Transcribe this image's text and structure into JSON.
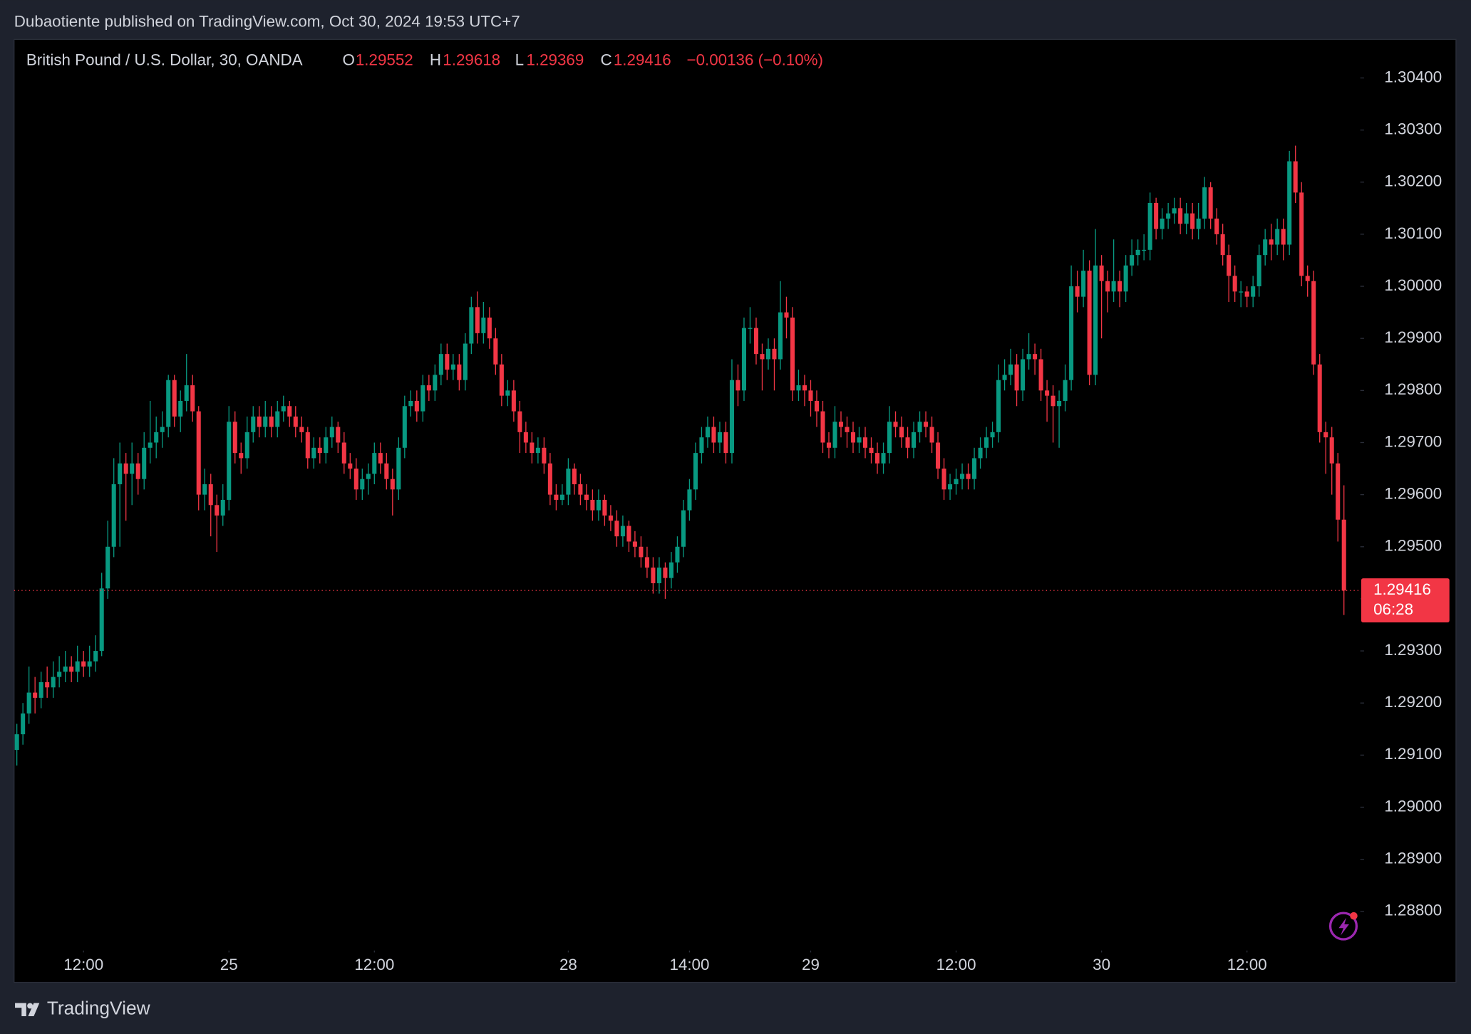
{
  "header": {
    "published": "Dubaotiente published on TradingView.com, Oct 30, 2024 19:53 UTC+7"
  },
  "footer": {
    "brand": "TradingView"
  },
  "chart_data": {
    "type": "candlestick",
    "symbol": "British Pound / U.S. Dollar, 30, OANDA",
    "open_label": "O",
    "high_label": "H",
    "low_label": "L",
    "close_label": "C",
    "change": "−0.00136 (−0.10%)",
    "countdown": "06:28",
    "up_color": "#089981",
    "down_color": "#f23645",
    "xlim": [
      -0.46,
      221.7
    ],
    "ylim": [
      1.28732,
      1.30474
    ],
    "xticks": [
      {
        "value": 11,
        "label": "12:00"
      },
      {
        "value": 35,
        "label": "25"
      },
      {
        "value": 59,
        "label": "12:00"
      },
      {
        "value": 91,
        "label": "28"
      },
      {
        "value": 111,
        "label": "14:00"
      },
      {
        "value": 131,
        "label": "29"
      },
      {
        "value": 155,
        "label": "12:00"
      },
      {
        "value": 179,
        "label": "30"
      },
      {
        "value": 203,
        "label": "12:00"
      }
    ],
    "yticks": [
      {
        "value": 1.288,
        "label": "1.28800"
      },
      {
        "value": 1.289,
        "label": "1.28900"
      },
      {
        "value": 1.29,
        "label": "1.29000"
      },
      {
        "value": 1.291,
        "label": "1.29100"
      },
      {
        "value": 1.292,
        "label": "1.29200"
      },
      {
        "value": 1.293,
        "label": "1.29300"
      },
      {
        "value": 1.294,
        "label": "1.29400"
      },
      {
        "value": 1.295,
        "label": "1.29500"
      },
      {
        "value": 1.296,
        "label": "1.29600"
      },
      {
        "value": 1.297,
        "label": "1.29700"
      },
      {
        "value": 1.298,
        "label": "1.29800"
      },
      {
        "value": 1.299,
        "label": "1.29900"
      },
      {
        "value": 1.3,
        "label": "1.30000"
      },
      {
        "value": 1.301,
        "label": "1.30100"
      },
      {
        "value": 1.302,
        "label": "1.30200"
      },
      {
        "value": 1.303,
        "label": "1.30300"
      },
      {
        "value": 1.304,
        "label": "1.30400"
      }
    ],
    "candles": [
      [
        1.2911,
        1.2916,
        1.2908,
        1.2914
      ],
      [
        1.2914,
        1.292,
        1.2912,
        1.2918
      ],
      [
        1.2918,
        1.2927,
        1.2916,
        1.2922
      ],
      [
        1.2922,
        1.2925,
        1.2918,
        1.2921
      ],
      [
        1.2921,
        1.2926,
        1.2919,
        1.2924
      ],
      [
        1.2924,
        1.2927,
        1.2921,
        1.2923
      ],
      [
        1.2923,
        1.2928,
        1.2921,
        1.2925
      ],
      [
        1.2925,
        1.2929,
        1.2923,
        1.2926
      ],
      [
        1.2926,
        1.293,
        1.2924,
        1.2927
      ],
      [
        1.2927,
        1.2929,
        1.2924,
        1.2926
      ],
      [
        1.2926,
        1.2931,
        1.2924,
        1.2928
      ],
      [
        1.2928,
        1.293,
        1.2925,
        1.2927
      ],
      [
        1.2927,
        1.2931,
        1.2925,
        1.2928
      ],
      [
        1.2928,
        1.2933,
        1.2926,
        1.293
      ],
      [
        1.293,
        1.2945,
        1.2929,
        1.2942
      ],
      [
        1.2942,
        1.2955,
        1.294,
        1.295
      ],
      [
        1.295,
        1.2967,
        1.2948,
        1.2962
      ],
      [
        1.2962,
        1.297,
        1.295,
        1.2966
      ],
      [
        1.2966,
        1.2968,
        1.2955,
        1.2964
      ],
      [
        1.2964,
        1.297,
        1.2958,
        1.2966
      ],
      [
        1.2966,
        1.2968,
        1.296,
        1.2963
      ],
      [
        1.2963,
        1.2972,
        1.2961,
        1.2969
      ],
      [
        1.2969,
        1.2978,
        1.2966,
        1.297
      ],
      [
        1.297,
        1.2975,
        1.2967,
        1.2972
      ],
      [
        1.2972,
        1.2976,
        1.2969,
        1.2973
      ],
      [
        1.2973,
        1.2983,
        1.2971,
        1.2982
      ],
      [
        1.2982,
        1.2983,
        1.2973,
        1.2975
      ],
      [
        1.2975,
        1.298,
        1.2972,
        1.2978
      ],
      [
        1.2978,
        1.2987,
        1.2976,
        1.2981
      ],
      [
        1.2981,
        1.2983,
        1.2974,
        1.2976
      ],
      [
        1.2976,
        1.2977,
        1.2957,
        1.296
      ],
      [
        1.296,
        1.2965,
        1.2957,
        1.2962
      ],
      [
        1.2962,
        1.2964,
        1.2952,
        1.2958
      ],
      [
        1.2958,
        1.296,
        1.2949,
        1.2956
      ],
      [
        1.2956,
        1.2962,
        1.2954,
        1.2959
      ],
      [
        1.2959,
        1.2977,
        1.2957,
        1.2974
      ],
      [
        1.2974,
        1.2976,
        1.2966,
        1.2968
      ],
      [
        1.2968,
        1.297,
        1.2964,
        1.2967
      ],
      [
        1.2967,
        1.2975,
        1.2965,
        1.2972
      ],
      [
        1.2972,
        1.2977,
        1.297,
        1.2975
      ],
      [
        1.2975,
        1.2977,
        1.2971,
        1.2973
      ],
      [
        1.2973,
        1.2978,
        1.2971,
        1.2975
      ],
      [
        1.2975,
        1.2977,
        1.2971,
        1.2973
      ],
      [
        1.2973,
        1.2978,
        1.2971,
        1.2976
      ],
      [
        1.2976,
        1.2979,
        1.2974,
        1.2977
      ],
      [
        1.2977,
        1.2978,
        1.2973,
        1.2975
      ],
      [
        1.2975,
        1.2977,
        1.2971,
        1.2973
      ],
      [
        1.2973,
        1.2975,
        1.297,
        1.2972
      ],
      [
        1.2972,
        1.2973,
        1.2965,
        1.2967
      ],
      [
        1.2967,
        1.2971,
        1.2965,
        1.2969
      ],
      [
        1.2969,
        1.2971,
        1.2966,
        1.2968
      ],
      [
        1.2968,
        1.2973,
        1.2966,
        1.2971
      ],
      [
        1.2971,
        1.2975,
        1.2969,
        1.2973
      ],
      [
        1.2973,
        1.2974,
        1.2968,
        1.297
      ],
      [
        1.297,
        1.2972,
        1.2964,
        1.2966
      ],
      [
        1.2966,
        1.2968,
        1.2963,
        1.2965
      ],
      [
        1.2965,
        1.2967,
        1.2959,
        1.2961
      ],
      [
        1.2961,
        1.2965,
        1.2959,
        1.2963
      ],
      [
        1.2963,
        1.2966,
        1.296,
        1.2964
      ],
      [
        1.2964,
        1.297,
        1.2962,
        1.2968
      ],
      [
        1.2968,
        1.297,
        1.2964,
        1.2966
      ],
      [
        1.2966,
        1.2968,
        1.2961,
        1.2963
      ],
      [
        1.2963,
        1.2965,
        1.2956,
        1.2961
      ],
      [
        1.2961,
        1.2971,
        1.2959,
        1.2969
      ],
      [
        1.2969,
        1.2979,
        1.2967,
        1.2977
      ],
      [
        1.2977,
        1.298,
        1.2975,
        1.2978
      ],
      [
        1.2978,
        1.298,
        1.2974,
        1.2976
      ],
      [
        1.2976,
        1.2983,
        1.2974,
        1.2981
      ],
      [
        1.2981,
        1.2983,
        1.2978,
        1.298
      ],
      [
        1.298,
        1.2985,
        1.2978,
        1.2983
      ],
      [
        1.2983,
        1.2989,
        1.2981,
        1.2987
      ],
      [
        1.2987,
        1.2989,
        1.2982,
        1.2984
      ],
      [
        1.2984,
        1.2987,
        1.2982,
        1.2985
      ],
      [
        1.2985,
        1.2987,
        1.298,
        1.2982
      ],
      [
        1.2982,
        1.2991,
        1.298,
        1.2989
      ],
      [
        1.2989,
        1.2998,
        1.2987,
        1.2996
      ],
      [
        1.2996,
        1.2999,
        1.2989,
        1.2991
      ],
      [
        1.2991,
        1.2997,
        1.2989,
        1.2994
      ],
      [
        1.2994,
        1.2996,
        1.2988,
        1.299
      ],
      [
        1.299,
        1.2992,
        1.2983,
        1.2985
      ],
      [
        1.2985,
        1.2987,
        1.2977,
        1.2979
      ],
      [
        1.2979,
        1.2982,
        1.2977,
        1.298
      ],
      [
        1.298,
        1.2982,
        1.2974,
        1.2976
      ],
      [
        1.2976,
        1.2978,
        1.2968,
        1.2972
      ],
      [
        1.2972,
        1.2974,
        1.2968,
        1.297
      ],
      [
        1.297,
        1.2972,
        1.2966,
        1.2968
      ],
      [
        1.2968,
        1.2971,
        1.2966,
        1.2969
      ],
      [
        1.2969,
        1.2971,
        1.2964,
        1.2966
      ],
      [
        1.2966,
        1.2968,
        1.2958,
        1.296
      ],
      [
        1.296,
        1.2962,
        1.2957,
        1.2959
      ],
      [
        1.2959,
        1.2962,
        1.2958,
        1.296
      ],
      [
        1.296,
        1.2967,
        1.2958,
        1.2965
      ],
      [
        1.2965,
        1.2966,
        1.296,
        1.2962
      ],
      [
        1.2962,
        1.2964,
        1.2958,
        1.296
      ],
      [
        1.296,
        1.2962,
        1.2957,
        1.2959
      ],
      [
        1.2959,
        1.2961,
        1.2955,
        1.2957
      ],
      [
        1.2957,
        1.2961,
        1.2955,
        1.2959
      ],
      [
        1.2959,
        1.296,
        1.2954,
        1.2956
      ],
      [
        1.2956,
        1.2958,
        1.2953,
        1.2955
      ],
      [
        1.2955,
        1.2957,
        1.295,
        1.2952
      ],
      [
        1.2952,
        1.2956,
        1.295,
        1.2954
      ],
      [
        1.2954,
        1.2955,
        1.2949,
        1.2951
      ],
      [
        1.2951,
        1.2953,
        1.2948,
        1.295
      ],
      [
        1.295,
        1.2952,
        1.2946,
        1.2948
      ],
      [
        1.2948,
        1.295,
        1.2944,
        1.2946
      ],
      [
        1.2946,
        1.2948,
        1.2941,
        1.2943
      ],
      [
        1.2943,
        1.2948,
        1.2941,
        1.2946
      ],
      [
        1.2946,
        1.2947,
        1.294,
        1.2944
      ],
      [
        1.2944,
        1.2949,
        1.2942,
        1.2947
      ],
      [
        1.2947,
        1.2952,
        1.2945,
        1.295
      ],
      [
        1.295,
        1.2959,
        1.2948,
        1.2957
      ],
      [
        1.2957,
        1.2963,
        1.2955,
        1.2961
      ],
      [
        1.2961,
        1.297,
        1.2959,
        1.2968
      ],
      [
        1.2968,
        1.2973,
        1.2966,
        1.2971
      ],
      [
        1.2971,
        1.2975,
        1.2969,
        1.2973
      ],
      [
        1.2973,
        1.2975,
        1.2968,
        1.297
      ],
      [
        1.297,
        1.2974,
        1.2968,
        1.2972
      ],
      [
        1.2972,
        1.2974,
        1.2966,
        1.2968
      ],
      [
        1.2968,
        1.2986,
        1.2966,
        1.2982
      ],
      [
        1.2982,
        1.2985,
        1.2977,
        1.298
      ],
      [
        1.298,
        1.2994,
        1.2978,
        1.2992
      ],
      [
        1.2992,
        1.2996,
        1.2989,
        1.2992
      ],
      [
        1.2992,
        1.2994,
        1.2985,
        1.2987
      ],
      [
        1.2987,
        1.2989,
        1.298,
        1.2986
      ],
      [
        1.2986,
        1.299,
        1.2984,
        1.2988
      ],
      [
        1.2988,
        1.299,
        1.298,
        1.2986
      ],
      [
        1.2986,
        1.3001,
        1.2984,
        1.2995
      ],
      [
        1.2995,
        1.2998,
        1.299,
        1.2994
      ],
      [
        1.2994,
        1.2996,
        1.2978,
        1.298
      ],
      [
        1.298,
        1.2984,
        1.2978,
        1.2981
      ],
      [
        1.2981,
        1.2983,
        1.2977,
        1.298
      ],
      [
        1.298,
        1.2982,
        1.2975,
        1.2978
      ],
      [
        1.2978,
        1.298,
        1.2973,
        1.2976
      ],
      [
        1.2976,
        1.2978,
        1.2968,
        1.297
      ],
      [
        1.297,
        1.2972,
        1.2967,
        1.2969
      ],
      [
        1.2969,
        1.2977,
        1.2967,
        1.2974
      ],
      [
        1.2974,
        1.2976,
        1.2971,
        1.2973
      ],
      [
        1.2973,
        1.2975,
        1.2969,
        1.2972
      ],
      [
        1.2972,
        1.2974,
        1.2968,
        1.297
      ],
      [
        1.297,
        1.2973,
        1.2968,
        1.2971
      ],
      [
        1.2971,
        1.2973,
        1.2967,
        1.2969
      ],
      [
        1.2969,
        1.2971,
        1.2966,
        1.2968
      ],
      [
        1.2968,
        1.297,
        1.2964,
        1.2966
      ],
      [
        1.2966,
        1.297,
        1.2964,
        1.2968
      ],
      [
        1.2968,
        1.2977,
        1.2966,
        1.2974
      ],
      [
        1.2974,
        1.2976,
        1.2971,
        1.2973
      ],
      [
        1.2973,
        1.2975,
        1.2969,
        1.2971
      ],
      [
        1.2971,
        1.2973,
        1.2967,
        1.2969
      ],
      [
        1.2969,
        1.2974,
        1.2967,
        1.2972
      ],
      [
        1.2972,
        1.2976,
        1.297,
        1.2974
      ],
      [
        1.2974,
        1.2976,
        1.2971,
        1.2973
      ],
      [
        1.2973,
        1.2975,
        1.2968,
        1.297
      ],
      [
        1.297,
        1.2972,
        1.2963,
        1.2965
      ],
      [
        1.2965,
        1.2967,
        1.2959,
        1.2961
      ],
      [
        1.2961,
        1.2964,
        1.2959,
        1.2962
      ],
      [
        1.2962,
        1.2965,
        1.296,
        1.2963
      ],
      [
        1.2963,
        1.2966,
        1.2961,
        1.2964
      ],
      [
        1.2964,
        1.2966,
        1.2961,
        1.2963
      ],
      [
        1.2963,
        1.2969,
        1.2961,
        1.2967
      ],
      [
        1.2967,
        1.2971,
        1.2965,
        1.2969
      ],
      [
        1.2969,
        1.2973,
        1.2967,
        1.2971
      ],
      [
        1.2971,
        1.2974,
        1.2969,
        1.2972
      ],
      [
        1.2972,
        1.2985,
        1.297,
        1.2982
      ],
      [
        1.2982,
        1.2986,
        1.298,
        1.2983
      ],
      [
        1.2983,
        1.2988,
        1.2981,
        1.2985
      ],
      [
        1.2985,
        1.2987,
        1.2977,
        1.298
      ],
      [
        1.298,
        1.2988,
        1.2978,
        1.2986
      ],
      [
        1.2986,
        1.2991,
        1.2984,
        1.2987
      ],
      [
        1.2987,
        1.2989,
        1.2983,
        1.2986
      ],
      [
        1.2986,
        1.2988,
        1.2978,
        1.298
      ],
      [
        1.298,
        1.2982,
        1.2974,
        1.2979
      ],
      [
        1.2979,
        1.2981,
        1.297,
        1.2977
      ],
      [
        1.2977,
        1.298,
        1.2969,
        1.2978
      ],
      [
        1.2978,
        1.2985,
        1.2976,
        1.2982
      ],
      [
        1.2982,
        1.3004,
        1.298,
        1.3
      ],
      [
        1.3,
        1.3003,
        1.2995,
        1.2998
      ],
      [
        1.2998,
        1.3007,
        1.2996,
        1.3003
      ],
      [
        1.3003,
        1.3005,
        1.2981,
        1.2983
      ],
      [
        1.2983,
        1.3011,
        1.2981,
        1.3004
      ],
      [
        1.3004,
        1.3006,
        1.299,
        1.3001
      ],
      [
        1.3001,
        1.3003,
        1.2995,
        1.2999
      ],
      [
        1.2999,
        1.3009,
        1.2997,
        1.3001
      ],
      [
        1.3001,
        1.3003,
        1.2996,
        1.2999
      ],
      [
        1.2999,
        1.3006,
        1.2997,
        1.3004
      ],
      [
        1.3004,
        1.3009,
        1.3002,
        1.3006
      ],
      [
        1.3006,
        1.3009,
        1.3004,
        1.3007
      ],
      [
        1.3007,
        1.301,
        1.3005,
        1.3007
      ],
      [
        1.3007,
        1.3018,
        1.3005,
        1.3016
      ],
      [
        1.3016,
        1.3017,
        1.3009,
        1.3011
      ],
      [
        1.3011,
        1.3015,
        1.3009,
        1.3013
      ],
      [
        1.3013,
        1.3016,
        1.3011,
        1.3014
      ],
      [
        1.3014,
        1.3017,
        1.3012,
        1.3015
      ],
      [
        1.3015,
        1.3017,
        1.301,
        1.3012
      ],
      [
        1.3012,
        1.3016,
        1.301,
        1.3014
      ],
      [
        1.3014,
        1.3016,
        1.3009,
        1.3011
      ],
      [
        1.3011,
        1.3016,
        1.3009,
        1.3013
      ],
      [
        1.3013,
        1.3021,
        1.3011,
        1.3019
      ],
      [
        1.3019,
        1.302,
        1.3011,
        1.3013
      ],
      [
        1.3013,
        1.3015,
        1.3008,
        1.301
      ],
      [
        1.301,
        1.3012,
        1.3004,
        1.3006
      ],
      [
        1.3006,
        1.3008,
        1.2997,
        1.3002
      ],
      [
        1.3002,
        1.3004,
        1.2997,
        1.2999
      ],
      [
        1.2999,
        1.3001,
        1.2996,
        1.2999
      ],
      [
        1.2999,
        1.3,
        1.2996,
        1.2998
      ],
      [
        1.2998,
        1.3002,
        1.2996,
        1.3
      ],
      [
        1.3,
        1.3008,
        1.2998,
        1.3006
      ],
      [
        1.3006,
        1.3011,
        1.3004,
        1.3009
      ],
      [
        1.3009,
        1.3012,
        1.3005,
        1.3008
      ],
      [
        1.3008,
        1.3013,
        1.3006,
        1.3011
      ],
      [
        1.3011,
        1.3013,
        1.3005,
        1.3008
      ],
      [
        1.3008,
        1.3026,
        1.3006,
        1.3024
      ],
      [
        1.3024,
        1.3027,
        1.3016,
        1.3018
      ],
      [
        1.3018,
        1.302,
        1.3,
        1.3002
      ],
      [
        1.3002,
        1.3004,
        1.2998,
        1.3001
      ],
      [
        1.3001,
        1.3003,
        1.2983,
        1.2985
      ],
      [
        1.2985,
        1.2987,
        1.297,
        1.2972
      ],
      [
        1.2972,
        1.2974,
        1.2964,
        1.2971
      ],
      [
        1.2971,
        1.2973,
        1.296,
        1.2966
      ],
      [
        1.2966,
        1.2968,
        1.2951,
        1.29552
      ],
      [
        1.29552,
        1.29618,
        1.29369,
        1.29416
      ]
    ]
  }
}
